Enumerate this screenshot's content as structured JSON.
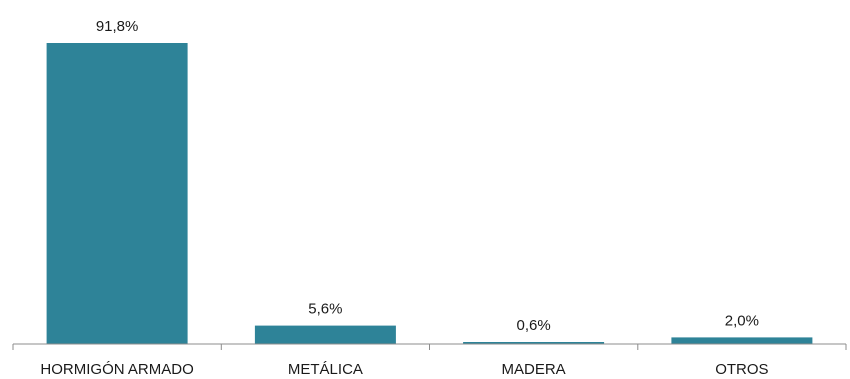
{
  "chart_data": {
    "type": "bar",
    "categories": [
      "HORMIGÓN ARMADO",
      "METÁLICA",
      "MADERA",
      "OTROS"
    ],
    "values": [
      91.8,
      5.6,
      0.6,
      2.0
    ],
    "value_labels": [
      "91,8%",
      "5,6%",
      "0,6%",
      "2,0%"
    ],
    "ylim": [
      0,
      100
    ],
    "grid": false,
    "legend": "none",
    "colors": {
      "bar": "#2e8398",
      "axis": "#8c8c8c",
      "text": "#1a1a1a"
    }
  }
}
